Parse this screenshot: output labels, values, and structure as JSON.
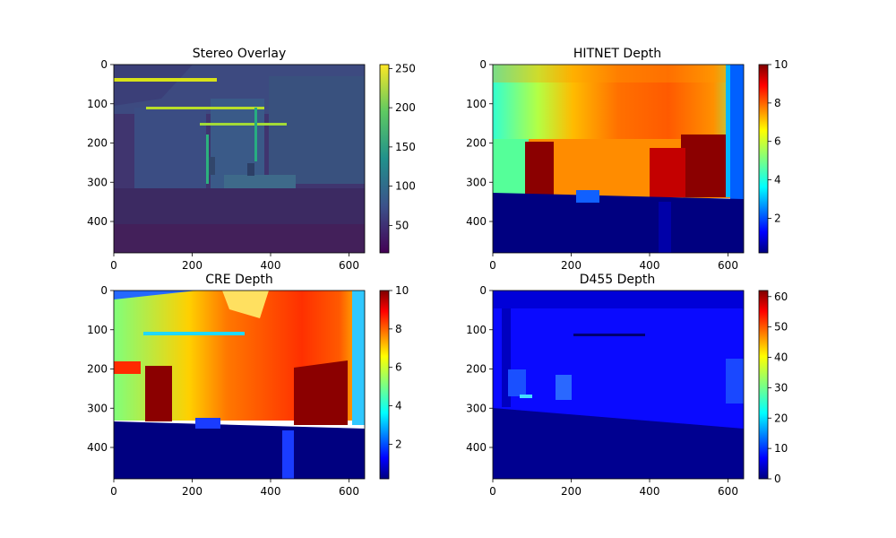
{
  "chart_data": [
    {
      "type": "heatmap",
      "title": "Stereo Overlay",
      "colormap": "viridis",
      "x_range": [
        0,
        640
      ],
      "y_range": [
        0,
        480
      ],
      "y_inverted": true,
      "x_ticks": [
        "0",
        "200",
        "400",
        "600"
      ],
      "y_ticks": [
        "0",
        "100",
        "200",
        "300",
        "400"
      ],
      "colorbar_range": [
        15,
        255
      ],
      "colorbar_ticks": [
        "50",
        "100",
        "150",
        "200",
        "250"
      ],
      "content": "grayscale stereo overlay of an indoor room with bright ceiling light strips"
    },
    {
      "type": "heatmap",
      "title": "HITNET Depth",
      "colormap": "jet",
      "x_range": [
        0,
        640
      ],
      "y_range": [
        0,
        480
      ],
      "y_inverted": true,
      "x_ticks": [
        "0",
        "200",
        "400",
        "600"
      ],
      "y_ticks": [
        "0",
        "100",
        "200",
        "300",
        "400"
      ],
      "colorbar_range": [
        0.2,
        10
      ],
      "colorbar_ticks": [
        "2",
        "4",
        "6",
        "8",
        "10"
      ],
      "content": "dense depth map, far wall 7-9 m, floor near 0"
    },
    {
      "type": "heatmap",
      "title": "CRE Depth",
      "colormap": "jet",
      "x_range": [
        0,
        640
      ],
      "y_range": [
        0,
        480
      ],
      "y_inverted": true,
      "x_ticks": [
        "0",
        "200",
        "400",
        "600"
      ],
      "y_ticks": [
        "0",
        "100",
        "200",
        "300",
        "400"
      ],
      "colorbar_range": [
        0.2,
        10
      ],
      "colorbar_ticks": [
        "2",
        "4",
        "6",
        "8",
        "10"
      ],
      "content": "dense depth map with sharper edges, far wall ~10 m"
    },
    {
      "type": "heatmap",
      "title": "D455 Depth",
      "colormap": "jet",
      "x_range": [
        0,
        640
      ],
      "y_range": [
        0,
        480
      ],
      "y_inverted": true,
      "x_ticks": [
        "0",
        "200",
        "400",
        "600"
      ],
      "y_ticks": [
        "0",
        "100",
        "200",
        "300",
        "400"
      ],
      "colorbar_range": [
        0,
        62
      ],
      "colorbar_ticks": [
        "0",
        "10",
        "20",
        "30",
        "40",
        "50",
        "60"
      ],
      "content": "sensor depth, mostly 0-15 range"
    }
  ]
}
